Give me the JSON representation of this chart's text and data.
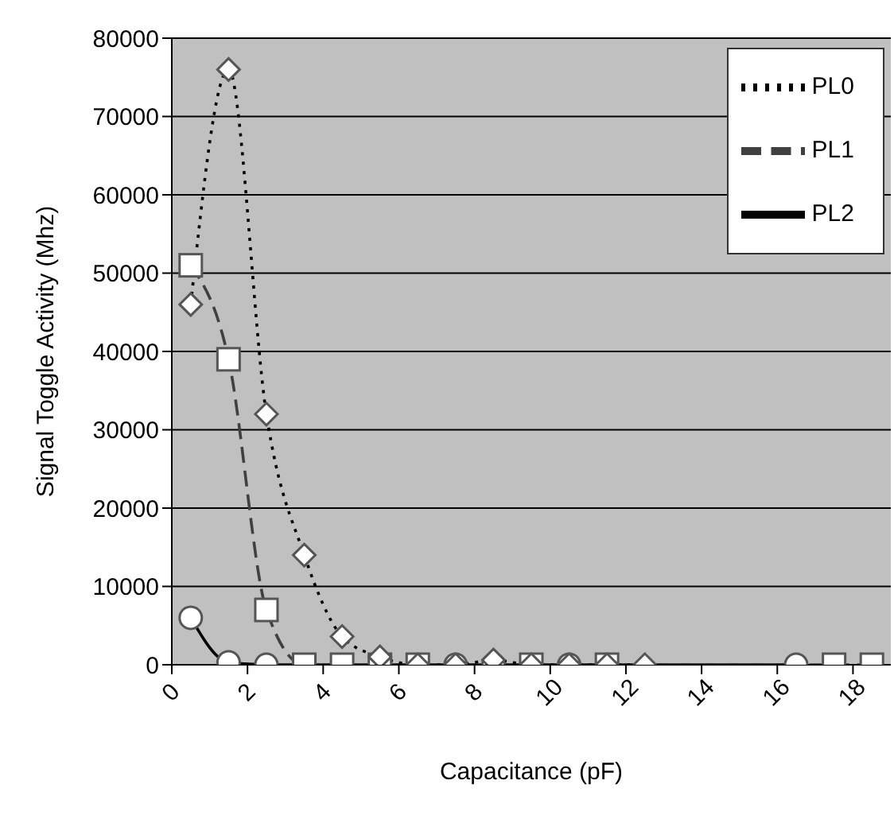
{
  "chart_data": {
    "type": "line",
    "xlabel": "Capacitance (pF)",
    "ylabel": "Signal Toggle Activity (Mhz)",
    "xlim": [
      0,
      19
    ],
    "xticks": [
      0,
      2,
      4,
      6,
      8,
      10,
      12,
      14,
      16,
      18
    ],
    "ylim": [
      0,
      80000
    ],
    "yticks": [
      0,
      10000,
      20000,
      30000,
      40000,
      50000,
      60000,
      70000,
      80000
    ],
    "grid": "y",
    "legend": "top right",
    "series": [
      {
        "name": "PL2",
        "color": "#000000",
        "marker": "circle",
        "line_style": "solid",
        "x": [
          0.5,
          1.5,
          2.5,
          7.5,
          8.5,
          10.5,
          16.5
        ],
        "values": [
          6000,
          300,
          0,
          0,
          0,
          0,
          0
        ]
      },
      {
        "name": "PL1",
        "color": "#404040",
        "marker": "square",
        "line_style": "dashed",
        "x": [
          0.5,
          1.5,
          2.5,
          3.5,
          4.5,
          5.5,
          6.5,
          9.5,
          11.5,
          17.5,
          18.5
        ],
        "values": [
          51000,
          39000,
          7000,
          0,
          0,
          0,
          0,
          0,
          0,
          0,
          0
        ]
      },
      {
        "name": "PL0",
        "color": "#000000",
        "marker": "diamond",
        "line_style": "dotted",
        "x": [
          0.5,
          1.5,
          2.5,
          3.5,
          4.5,
          5.5,
          6.5,
          7.5,
          8.5,
          9.5,
          10.5,
          11.5,
          12.5
        ],
        "values": [
          46000,
          76000,
          32000,
          14000,
          3600,
          1000,
          0,
          0,
          600,
          0,
          0,
          0,
          0
        ]
      }
    ]
  }
}
